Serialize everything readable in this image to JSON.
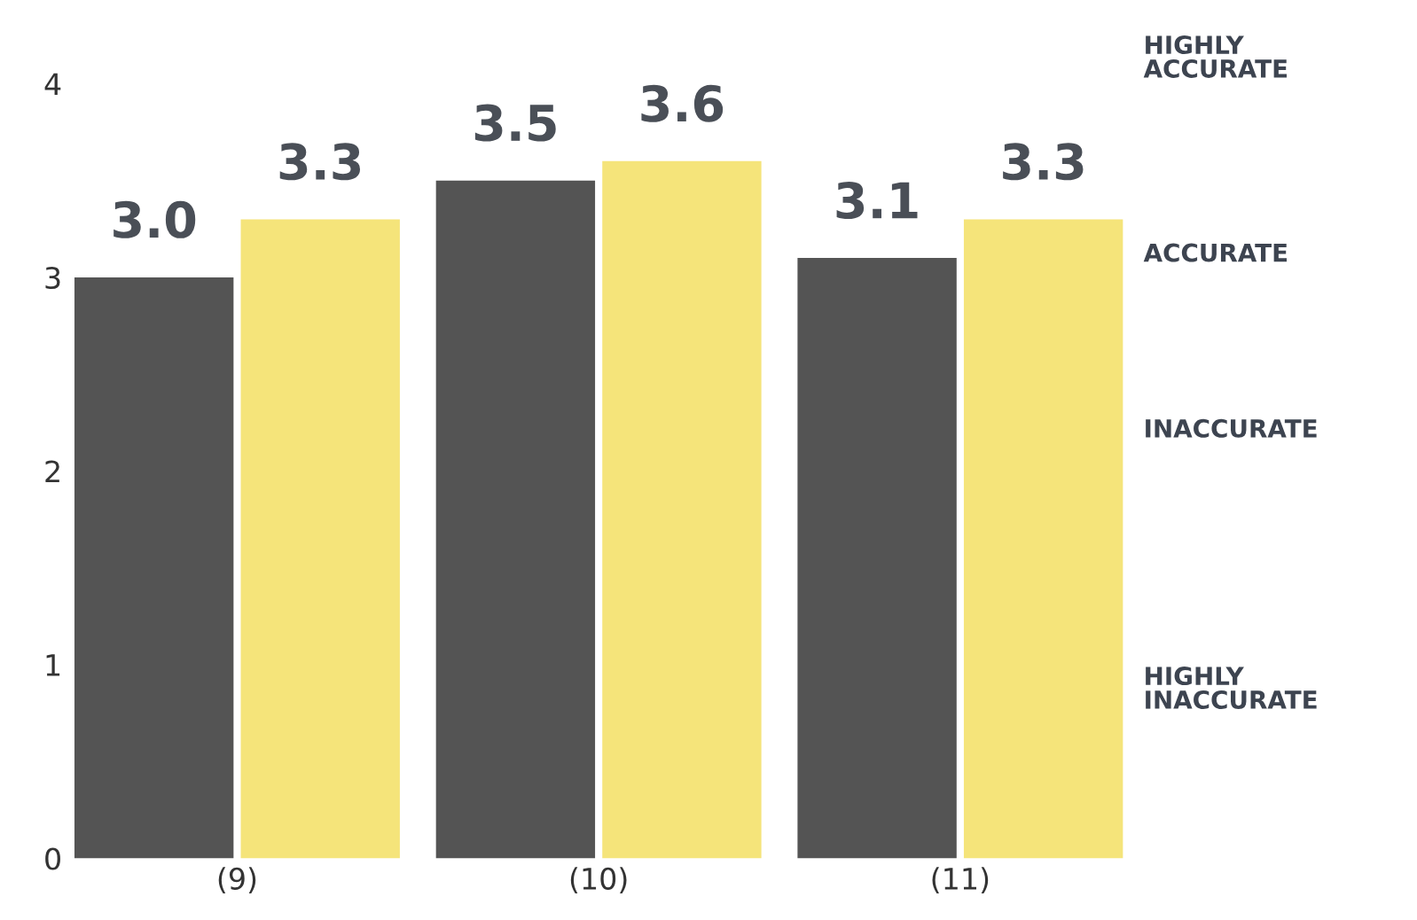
{
  "chart_data": {
    "type": "bar",
    "categories": [
      "(9)",
      "(10)",
      "(11)"
    ],
    "series": [
      {
        "color": "#545454",
        "values": [
          3.0,
          3.5,
          3.1
        ],
        "value_labels": [
          "3.0",
          "3.5",
          "3.1"
        ]
      },
      {
        "color": "#f5e47a",
        "values": [
          3.3,
          3.6,
          3.3
        ],
        "value_labels": [
          "3.3",
          "3.6",
          "3.3"
        ]
      }
    ],
    "ylim": [
      0,
      4
    ],
    "yticks": [
      0,
      1,
      2,
      3,
      4
    ],
    "annotations": [
      "HIGHLY\nACCURATE",
      "ACCURATE",
      "INACCURATE",
      "HIGHLY\nINACCURATE"
    ],
    "grid": false,
    "legend": false
  }
}
